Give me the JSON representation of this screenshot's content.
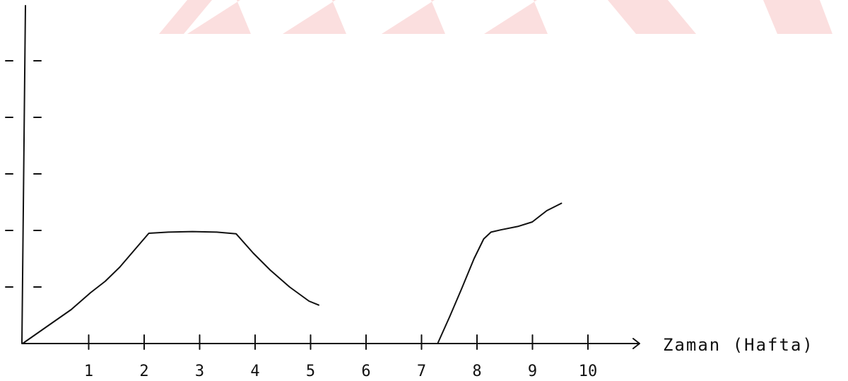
{
  "chart_data": {
    "type": "line",
    "title": "",
    "xlabel": "Zaman (Hafta)",
    "ylabel": "",
    "xlim": [
      0,
      11.5
    ],
    "ylim": [
      0,
      5.4
    ],
    "x_ticks": [
      1,
      2,
      3,
      4,
      5,
      6,
      7,
      8,
      9,
      10
    ],
    "y_ticks": [
      1,
      2,
      3,
      4,
      5
    ],
    "y_tick_labels_shown": false,
    "grid": false,
    "legend": "none",
    "line_color": "#111111",
    "watermark_color": "#f7c5c5",
    "series": [
      {
        "segments": [
          [
            [
              0,
              0
            ],
            [
              0.5,
              0.3
            ],
            [
              1,
              0.6
            ],
            [
              1.4,
              0.9
            ],
            [
              1.7,
              1.1
            ],
            [
              2,
              1.35
            ],
            [
              2.35,
              1.7
            ],
            [
              2.6,
              1.95
            ],
            [
              3,
              1.97
            ],
            [
              3.5,
              1.98
            ],
            [
              4,
              1.97
            ],
            [
              4.4,
              1.94
            ],
            [
              4.75,
              1.6
            ],
            [
              5.1,
              1.3
            ],
            [
              5.5,
              1.0
            ],
            [
              5.9,
              0.75
            ],
            [
              6.1,
              0.68
            ]
          ],
          [
            [
              8.55,
              0
            ],
            [
              8.8,
              0.48
            ],
            [
              9.05,
              0.98
            ],
            [
              9.3,
              1.5
            ],
            [
              9.5,
              1.85
            ],
            [
              9.65,
              1.97
            ],
            [
              9.85,
              2.01
            ],
            [
              10.2,
              2.07
            ],
            [
              10.5,
              2.15
            ],
            [
              10.8,
              2.35
            ],
            [
              11.1,
              2.48
            ]
          ]
        ]
      }
    ]
  }
}
